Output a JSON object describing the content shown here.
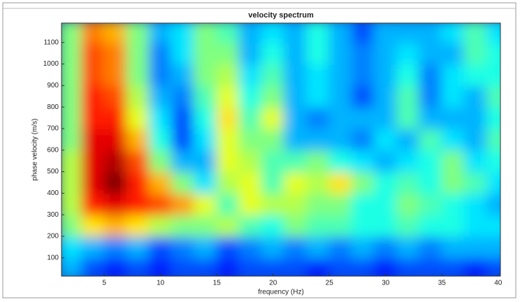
{
  "chart_data": {
    "type": "heatmap",
    "title": "velocity spectrum",
    "x_label": "frequency (Hz)",
    "y_label": "phase velocity (m/s)",
    "colormap": "jet",
    "x": [
      2,
      4,
      6,
      8,
      10,
      12,
      14,
      16,
      18,
      20,
      22,
      24,
      26,
      28,
      30,
      32,
      34,
      36,
      38,
      40
    ],
    "y": [
      50,
      150,
      250,
      350,
      450,
      550,
      650,
      750,
      850,
      950,
      1050,
      1150
    ],
    "z": [
      [
        0.3,
        0.2,
        0.15,
        0.2,
        0.15,
        0.2,
        0.2,
        0.15,
        0.2,
        0.2,
        0.2,
        0.15,
        0.2,
        0.2,
        0.15,
        0.2,
        0.2,
        0.2,
        0.15,
        0.2
      ],
      [
        0.35,
        0.3,
        0.25,
        0.3,
        0.2,
        0.25,
        0.3,
        0.2,
        0.25,
        0.3,
        0.25,
        0.3,
        0.25,
        0.3,
        0.25,
        0.3,
        0.25,
        0.3,
        0.3,
        0.3
      ],
      [
        0.5,
        0.65,
        0.7,
        0.65,
        0.55,
        0.5,
        0.5,
        0.55,
        0.45,
        0.4,
        0.5,
        0.45,
        0.45,
        0.4,
        0.4,
        0.45,
        0.4,
        0.4,
        0.35,
        0.35
      ],
      [
        0.55,
        0.85,
        0.9,
        0.85,
        0.8,
        0.72,
        0.6,
        0.45,
        0.6,
        0.55,
        0.55,
        0.5,
        0.5,
        0.4,
        0.4,
        0.5,
        0.45,
        0.4,
        0.35,
        0.3
      ],
      [
        0.55,
        0.9,
        1.0,
        0.85,
        0.7,
        0.5,
        0.35,
        0.55,
        0.6,
        0.45,
        0.6,
        0.55,
        0.65,
        0.5,
        0.4,
        0.45,
        0.4,
        0.5,
        0.45,
        0.35
      ],
      [
        0.55,
        0.9,
        0.95,
        0.8,
        0.5,
        0.3,
        0.3,
        0.6,
        0.55,
        0.45,
        0.45,
        0.5,
        0.4,
        0.35,
        0.3,
        0.35,
        0.4,
        0.5,
        0.35,
        0.4
      ],
      [
        0.5,
        0.9,
        0.9,
        0.7,
        0.4,
        0.2,
        0.35,
        0.6,
        0.5,
        0.5,
        0.3,
        0.3,
        0.3,
        0.25,
        0.35,
        0.3,
        0.45,
        0.35,
        0.3,
        0.45
      ],
      [
        0.5,
        0.85,
        0.85,
        0.6,
        0.35,
        0.2,
        0.4,
        0.65,
        0.45,
        0.6,
        0.3,
        0.25,
        0.3,
        0.3,
        0.3,
        0.45,
        0.3,
        0.3,
        0.3,
        0.4
      ],
      [
        0.5,
        0.85,
        0.8,
        0.55,
        0.3,
        0.25,
        0.45,
        0.6,
        0.4,
        0.5,
        0.3,
        0.35,
        0.3,
        0.2,
        0.3,
        0.45,
        0.25,
        0.35,
        0.3,
        0.45
      ],
      [
        0.5,
        0.8,
        0.75,
        0.5,
        0.25,
        0.3,
        0.5,
        0.55,
        0.35,
        0.45,
        0.3,
        0.35,
        0.3,
        0.25,
        0.3,
        0.4,
        0.25,
        0.35,
        0.4,
        0.4
      ],
      [
        0.5,
        0.8,
        0.75,
        0.5,
        0.25,
        0.35,
        0.5,
        0.5,
        0.3,
        0.4,
        0.3,
        0.4,
        0.3,
        0.25,
        0.3,
        0.35,
        0.3,
        0.3,
        0.45,
        0.4
      ],
      [
        0.5,
        0.75,
        0.7,
        0.5,
        0.3,
        0.35,
        0.5,
        0.45,
        0.3,
        0.35,
        0.3,
        0.4,
        0.3,
        0.2,
        0.3,
        0.3,
        0.3,
        0.35,
        0.45,
        0.35
      ]
    ],
    "xlim": [
      1.2,
      40.2
    ],
    "xticks": [
      5,
      10,
      15,
      20,
      25,
      30,
      35,
      40
    ],
    "ylim": [
      15,
      1190
    ],
    "yticks": [
      100,
      200,
      300,
      400,
      500,
      600,
      700,
      800,
      900,
      1000,
      1100
    ]
  }
}
